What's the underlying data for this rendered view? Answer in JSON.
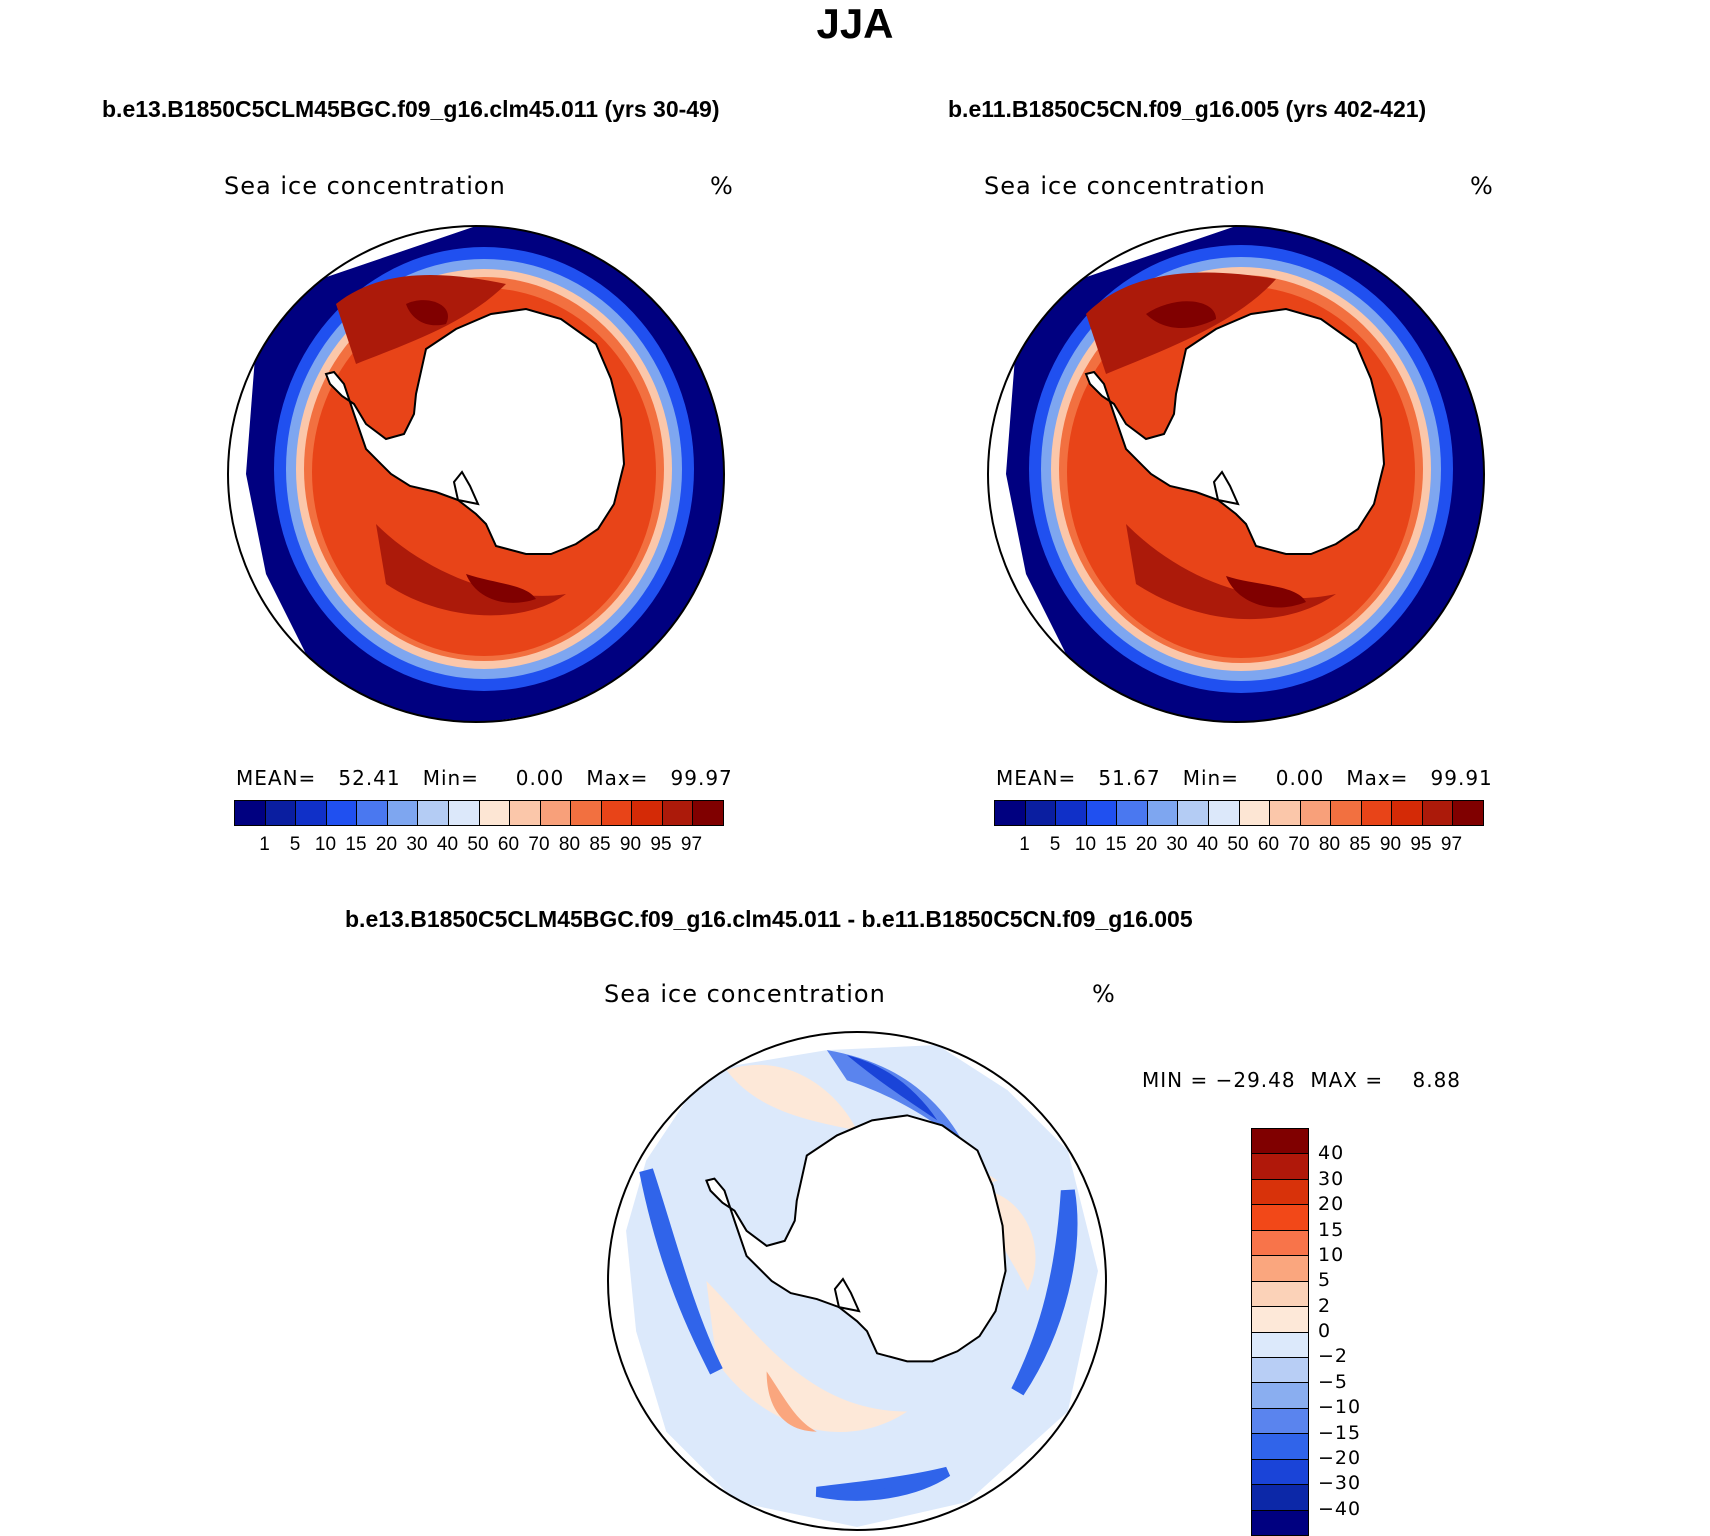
{
  "title": "JJA",
  "panel_left": {
    "case": "b.e13.B1850C5CLM45BGC.f09_g16.clm45.011 (yrs 30-49)",
    "variable": "Sea ice concentration",
    "units": "%",
    "stats": "MEAN=   52.41   Min=     0.00   Max=   99.97"
  },
  "panel_right": {
    "case": "b.e11.B1850C5CN.f09_g16.005 (yrs 402-421)",
    "variable": "Sea ice concentration",
    "units": "%",
    "stats": "MEAN=   51.67   Min=     0.00   Max=   99.91"
  },
  "panel_diff": {
    "case": "b.e13.B1850C5CLM45BGC.f09_g16.clm45.011 - b.e11.B1850C5CN.f09_g16.005",
    "variable": "Sea ice concentration",
    "units": "%",
    "stats": "MIN = −29.48  MAX =    8.88"
  },
  "colorbar_abs": {
    "colors": [
      "#000080",
      "#0a1ea0",
      "#1030c8",
      "#2050f0",
      "#4a78f0",
      "#7ea6f0",
      "#b4ccf4",
      "#dce8fa",
      "#fde6d4",
      "#fbc7aa",
      "#f8a07a",
      "#f27040",
      "#e84418",
      "#d42a06",
      "#ac1a0a",
      "#800000"
    ],
    "labels": [
      "1",
      "5",
      "10",
      "15",
      "20",
      "30",
      "40",
      "50",
      "60",
      "70",
      "80",
      "85",
      "90",
      "95",
      "97"
    ]
  },
  "colorbar_diff": {
    "colors": [
      "#800000",
      "#b0180a",
      "#d8320a",
      "#f24818",
      "#f8744a",
      "#faa67e",
      "#fbd2b8",
      "#fde8d8",
      "#dce9fb",
      "#b8cef5",
      "#8aaef0",
      "#5a84ee",
      "#3064ea",
      "#1a44d8",
      "#0c28a8",
      "#000080"
    ],
    "labels": [
      "40",
      "30",
      "20",
      "15",
      "10",
      "5",
      "2",
      "0",
      "−2",
      "−5",
      "−10",
      "−15",
      "−20",
      "−30",
      "−40"
    ]
  }
}
